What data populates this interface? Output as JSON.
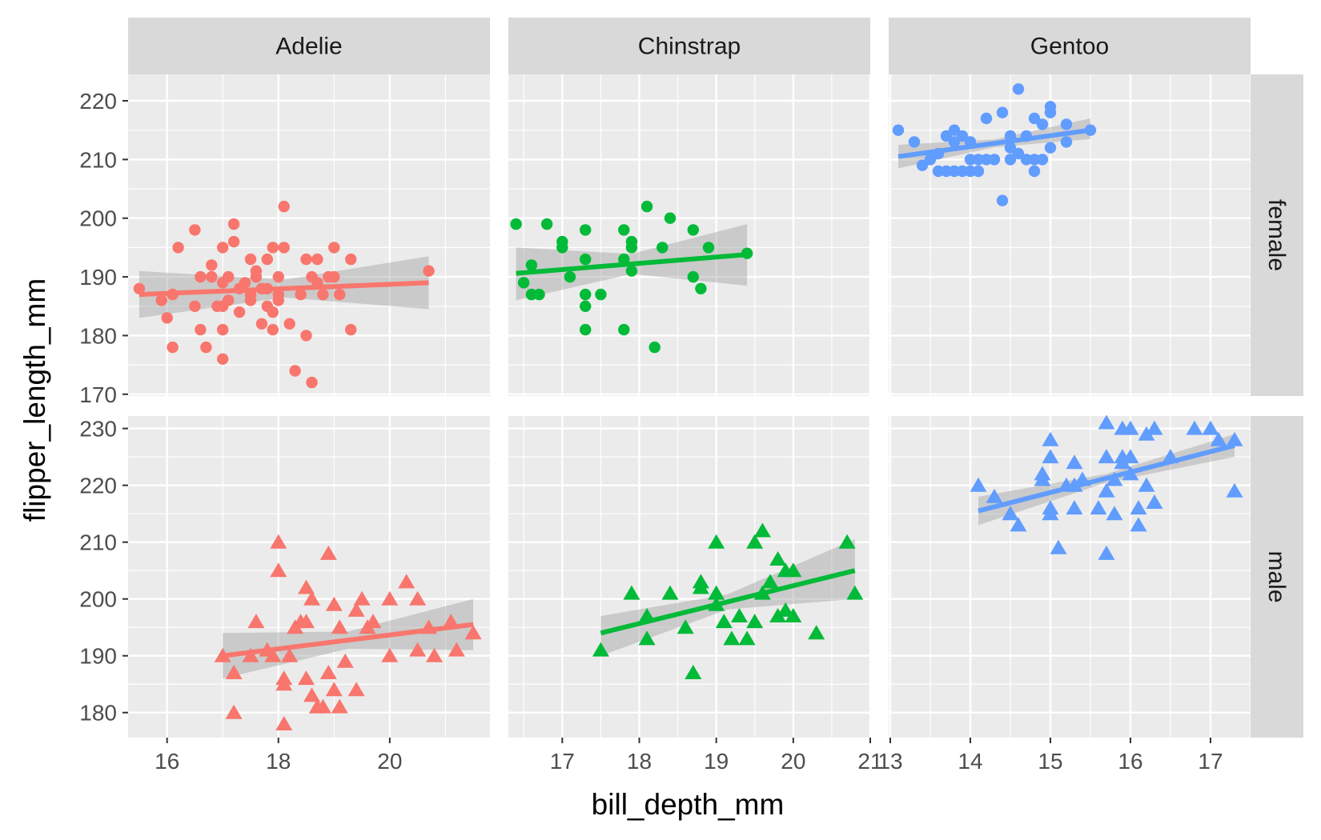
{
  "chart_data": {
    "type": "scatter",
    "xlabel": "bill_depth_mm",
    "ylabel": "flipper_length_mm",
    "columns": [
      "Adelie",
      "Chinstrap",
      "Gentoo"
    ],
    "rows": [
      "female",
      "male"
    ],
    "colors": {
      "Adelie": "#F8766D",
      "Chinstrap": "#00BA38",
      "Gentoo": "#619CFF"
    },
    "band_color": "#999999",
    "markers": {
      "female": "circle",
      "male": "triangle"
    },
    "x_axes": [
      {
        "range": [
          15.3,
          21.8
        ],
        "ticks": [
          16,
          18,
          20
        ],
        "tick_labels": [
          "16",
          "18",
          "20"
        ]
      },
      {
        "range": [
          16.3,
          21.0
        ],
        "ticks": [
          17,
          18,
          19,
          20,
          21
        ],
        "tick_labels": [
          "17",
          "18",
          "19",
          "20",
          "21"
        ]
      },
      {
        "range": [
          12.98,
          17.5
        ],
        "ticks": [
          13,
          14,
          15,
          16,
          17
        ],
        "tick_labels": [
          "13",
          "14",
          "15",
          "16",
          "17"
        ]
      }
    ],
    "y_axes": [
      {
        "range": [
          169.7,
          224.5
        ],
        "ticks": [
          170,
          180,
          190,
          200,
          210,
          220
        ],
        "tick_labels": [
          "170",
          "180",
          "190",
          "200",
          "210",
          "220"
        ]
      },
      {
        "range": [
          175.6,
          232.2
        ],
        "ticks": [
          180,
          190,
          200,
          210,
          220,
          230
        ],
        "tick_labels": [
          "180",
          "190",
          "200",
          "210",
          "220",
          "230"
        ]
      }
    ],
    "grid": true,
    "panels": [
      {
        "column": "Adelie",
        "row": "female",
        "fit": {
          "x": [
            15.5,
            20.7
          ],
          "y": [
            187.0,
            189.0
          ],
          "band_lo": [
            183.0,
            184.5
          ],
          "band_hi": [
            191.0,
            193.5
          ]
        },
        "points": [
          [
            15.5,
            188
          ],
          [
            15.9,
            186
          ],
          [
            16.0,
            183
          ],
          [
            16.1,
            178
          ],
          [
            16.1,
            187
          ],
          [
            16.2,
            195
          ],
          [
            16.5,
            185
          ],
          [
            16.5,
            198
          ],
          [
            16.6,
            190
          ],
          [
            16.6,
            181
          ],
          [
            16.7,
            178
          ],
          [
            16.8,
            192
          ],
          [
            16.8,
            190
          ],
          [
            16.9,
            185
          ],
          [
            17.0,
            176
          ],
          [
            17.0,
            181
          ],
          [
            17.0,
            195
          ],
          [
            17.0,
            185
          ],
          [
            17.0,
            189
          ],
          [
            17.1,
            190
          ],
          [
            17.1,
            186
          ],
          [
            17.2,
            199
          ],
          [
            17.2,
            196
          ],
          [
            17.3,
            188
          ],
          [
            17.3,
            184
          ],
          [
            17.4,
            189
          ],
          [
            17.5,
            186
          ],
          [
            17.5,
            193
          ],
          [
            17.5,
            187
          ],
          [
            17.6,
            191
          ],
          [
            17.6,
            190
          ],
          [
            17.7,
            188
          ],
          [
            17.7,
            182
          ],
          [
            17.8,
            188
          ],
          [
            17.8,
            193
          ],
          [
            17.8,
            185
          ],
          [
            17.9,
            195
          ],
          [
            17.9,
            181
          ],
          [
            17.9,
            184
          ],
          [
            18.0,
            186
          ],
          [
            18.0,
            190
          ],
          [
            18.0,
            187
          ],
          [
            18.1,
            202
          ],
          [
            18.1,
            195
          ],
          [
            18.2,
            182
          ],
          [
            18.3,
            174
          ],
          [
            18.4,
            187
          ],
          [
            18.5,
            193
          ],
          [
            18.5,
            180
          ],
          [
            18.6,
            172
          ],
          [
            18.6,
            190
          ],
          [
            18.7,
            193
          ],
          [
            18.7,
            189
          ],
          [
            18.8,
            187
          ],
          [
            18.9,
            190
          ],
          [
            19.0,
            195
          ],
          [
            19.0,
            190
          ],
          [
            19.1,
            187
          ],
          [
            19.3,
            193
          ],
          [
            19.3,
            181
          ],
          [
            20.7,
            191
          ]
        ]
      },
      {
        "column": "Chinstrap",
        "row": "female",
        "fit": {
          "x": [
            16.4,
            19.4
          ],
          "y": [
            190.6,
            193.8
          ],
          "band_lo": [
            186.0,
            188.5
          ],
          "band_hi": [
            195.0,
            199.0
          ]
        },
        "points": [
          [
            16.4,
            199
          ],
          [
            16.5,
            189
          ],
          [
            16.6,
            192
          ],
          [
            16.6,
            187
          ],
          [
            16.7,
            187
          ],
          [
            16.8,
            199
          ],
          [
            17.0,
            196
          ],
          [
            17.0,
            195
          ],
          [
            17.1,
            190
          ],
          [
            17.3,
            198
          ],
          [
            17.3,
            193
          ],
          [
            17.3,
            187
          ],
          [
            17.3,
            185
          ],
          [
            17.3,
            181
          ],
          [
            17.5,
            187
          ],
          [
            17.8,
            198
          ],
          [
            17.8,
            193
          ],
          [
            17.8,
            181
          ],
          [
            17.9,
            196
          ],
          [
            17.9,
            195
          ],
          [
            17.9,
            191
          ],
          [
            18.1,
            202
          ],
          [
            18.2,
            178
          ],
          [
            18.3,
            195
          ],
          [
            18.4,
            200
          ],
          [
            18.7,
            190
          ],
          [
            18.7,
            198
          ],
          [
            18.8,
            188
          ],
          [
            18.9,
            195
          ],
          [
            19.4,
            194
          ]
        ]
      },
      {
        "column": "Gentoo",
        "row": "female",
        "fit": {
          "x": [
            13.1,
            15.5
          ],
          "y": [
            210.5,
            215.0
          ],
          "band_lo": [
            208.5,
            213.5
          ],
          "band_hi": [
            212.5,
            217.0
          ]
        },
        "points": [
          [
            13.1,
            215
          ],
          [
            13.3,
            213
          ],
          [
            13.4,
            209
          ],
          [
            13.5,
            210
          ],
          [
            13.6,
            211
          ],
          [
            13.6,
            208
          ],
          [
            13.7,
            214
          ],
          [
            13.7,
            208
          ],
          [
            13.8,
            213
          ],
          [
            13.8,
            215
          ],
          [
            13.8,
            208
          ],
          [
            13.9,
            214
          ],
          [
            13.9,
            208
          ],
          [
            14.0,
            213
          ],
          [
            14.0,
            210
          ],
          [
            14.0,
            208
          ],
          [
            14.1,
            210
          ],
          [
            14.1,
            208
          ],
          [
            14.2,
            217
          ],
          [
            14.2,
            210
          ],
          [
            14.3,
            210
          ],
          [
            14.4,
            218
          ],
          [
            14.4,
            203
          ],
          [
            14.5,
            214
          ],
          [
            14.5,
            212
          ],
          [
            14.5,
            210
          ],
          [
            14.6,
            222
          ],
          [
            14.6,
            211
          ],
          [
            14.7,
            214
          ],
          [
            14.7,
            210
          ],
          [
            14.8,
            217
          ],
          [
            14.8,
            210
          ],
          [
            14.8,
            208
          ],
          [
            14.9,
            216
          ],
          [
            14.9,
            210
          ],
          [
            15.0,
            219
          ],
          [
            15.0,
            218
          ],
          [
            15.0,
            212
          ],
          [
            15.2,
            216
          ],
          [
            15.2,
            213
          ],
          [
            15.5,
            215
          ]
        ]
      },
      {
        "column": "Adelie",
        "row": "male",
        "fit": {
          "x": [
            17.0,
            21.5
          ],
          "y": [
            190.0,
            195.5
          ],
          "band_lo": [
            186.0,
            191.0
          ],
          "band_hi": [
            194.0,
            200.0
          ]
        },
        "points": [
          [
            17.0,
            190
          ],
          [
            17.2,
            180
          ],
          [
            17.2,
            187
          ],
          [
            17.5,
            190
          ],
          [
            17.6,
            196
          ],
          [
            17.8,
            191
          ],
          [
            17.9,
            190
          ],
          [
            18.0,
            210
          ],
          [
            18.0,
            205
          ],
          [
            18.1,
            178
          ],
          [
            18.1,
            186
          ],
          [
            18.1,
            185
          ],
          [
            18.2,
            190
          ],
          [
            18.3,
            195
          ],
          [
            18.4,
            196
          ],
          [
            18.5,
            202
          ],
          [
            18.5,
            196
          ],
          [
            18.5,
            186
          ],
          [
            18.6,
            183
          ],
          [
            18.6,
            200
          ],
          [
            18.7,
            181
          ],
          [
            18.7,
            181
          ],
          [
            18.8,
            181
          ],
          [
            18.9,
            208
          ],
          [
            18.9,
            187
          ],
          [
            19.0,
            199
          ],
          [
            19.0,
            184
          ],
          [
            19.1,
            181
          ],
          [
            19.1,
            195
          ],
          [
            19.2,
            189
          ],
          [
            19.4,
            198
          ],
          [
            19.4,
            184
          ],
          [
            19.5,
            200
          ],
          [
            19.6,
            195
          ],
          [
            19.7,
            196
          ],
          [
            20.0,
            200
          ],
          [
            20.0,
            190
          ],
          [
            20.3,
            203
          ],
          [
            20.5,
            191
          ],
          [
            20.5,
            200
          ],
          [
            20.7,
            195
          ],
          [
            20.8,
            190
          ],
          [
            21.1,
            196
          ],
          [
            21.2,
            191
          ],
          [
            21.5,
            194
          ]
        ]
      },
      {
        "column": "Chinstrap",
        "row": "male",
        "fit": {
          "x": [
            17.5,
            20.8
          ],
          "y": [
            194.0,
            205.0
          ],
          "band_lo": [
            190.0,
            200.0
          ],
          "band_hi": [
            197.0,
            210.5
          ]
        },
        "points": [
          [
            17.5,
            191
          ],
          [
            17.9,
            201
          ],
          [
            18.1,
            197
          ],
          [
            18.1,
            193
          ],
          [
            18.4,
            201
          ],
          [
            18.6,
            195
          ],
          [
            18.7,
            187
          ],
          [
            18.8,
            202
          ],
          [
            18.8,
            203
          ],
          [
            19.0,
            210
          ],
          [
            19.0,
            201
          ],
          [
            19.0,
            199
          ],
          [
            19.1,
            196
          ],
          [
            19.2,
            193
          ],
          [
            19.3,
            197
          ],
          [
            19.4,
            193
          ],
          [
            19.5,
            196
          ],
          [
            19.5,
            210
          ],
          [
            19.6,
            212
          ],
          [
            19.6,
            201
          ],
          [
            19.7,
            203
          ],
          [
            19.8,
            197
          ],
          [
            19.8,
            207
          ],
          [
            19.9,
            198
          ],
          [
            19.9,
            205
          ],
          [
            20.0,
            197
          ],
          [
            20.0,
            205
          ],
          [
            20.3,
            194
          ],
          [
            20.7,
            210
          ],
          [
            20.8,
            201
          ]
        ]
      },
      {
        "column": "Gentoo",
        "row": "male",
        "fit": {
          "x": [
            14.1,
            17.3
          ],
          "y": [
            215.5,
            227.0
          ],
          "band_lo": [
            213.0,
            225.0
          ],
          "band_hi": [
            218.0,
            229.0
          ]
        },
        "points": [
          [
            14.1,
            220
          ],
          [
            14.3,
            218
          ],
          [
            14.5,
            215
          ],
          [
            14.6,
            213
          ],
          [
            14.9,
            221
          ],
          [
            14.9,
            222
          ],
          [
            15.0,
            228
          ],
          [
            15.0,
            225
          ],
          [
            15.0,
            216
          ],
          [
            15.0,
            215
          ],
          [
            15.1,
            209
          ],
          [
            15.2,
            220
          ],
          [
            15.3,
            220
          ],
          [
            15.3,
            224
          ],
          [
            15.3,
            216
          ],
          [
            15.4,
            221
          ],
          [
            15.6,
            216
          ],
          [
            15.7,
            231
          ],
          [
            15.7,
            225
          ],
          [
            15.7,
            219
          ],
          [
            15.7,
            208
          ],
          [
            15.8,
            221
          ],
          [
            15.8,
            215
          ],
          [
            15.9,
            230
          ],
          [
            15.9,
            225
          ],
          [
            15.9,
            224
          ],
          [
            16.0,
            230
          ],
          [
            16.0,
            225
          ],
          [
            16.0,
            222
          ],
          [
            16.1,
            216
          ],
          [
            16.1,
            213
          ],
          [
            16.2,
            229
          ],
          [
            16.2,
            220
          ],
          [
            16.3,
            230
          ],
          [
            16.3,
            217
          ],
          [
            16.5,
            225
          ],
          [
            16.8,
            230
          ],
          [
            17.0,
            230
          ],
          [
            17.1,
            228
          ],
          [
            17.3,
            228
          ],
          [
            17.3,
            219
          ]
        ]
      }
    ]
  }
}
